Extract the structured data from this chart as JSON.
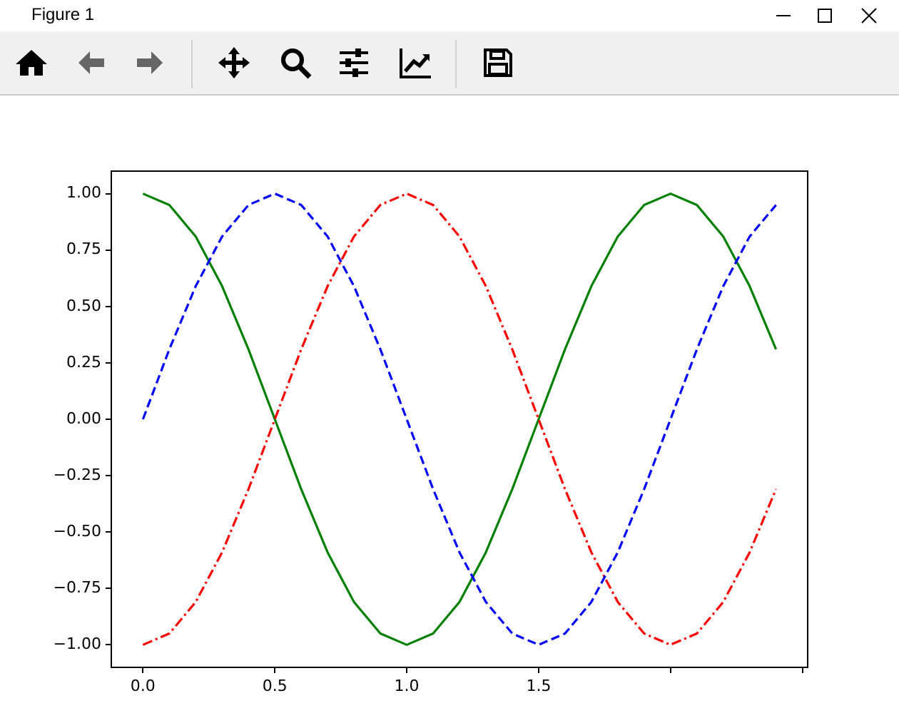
{
  "chart_data": {
    "type": "line",
    "annotations": [
      "Figure 1"
    ],
    "x": [
      0,
      0.1,
      0.2,
      0.3,
      0.4,
      0.5,
      0.6,
      0.7,
      0.8,
      0.9,
      1.0,
      1.1,
      1.2,
      1.3,
      1.4,
      1.5,
      1.6,
      1.7,
      1.8,
      1.9,
      2.0,
      2.1,
      2.2,
      2.3,
      2.4
    ],
    "series": [
      {
        "color": "#0000ff",
        "line_style": "dashed",
        "values": [
          0,
          0.31,
          0.59,
          0.81,
          0.95,
          1,
          0.95,
          0.81,
          0.59,
          0.31,
          0,
          -0.31,
          -0.59,
          -0.81,
          -0.95,
          -1,
          -0.95,
          -0.81,
          -0.59,
          -0.31,
          0,
          0.31,
          0.59,
          0.81,
          0.95
        ]
      },
      {
        "color": "#ff0000",
        "line_style": "dashdot",
        "values": [
          -1,
          -0.95,
          -0.81,
          -0.59,
          -0.31,
          0,
          0.31,
          0.59,
          0.81,
          0.95,
          1,
          0.95,
          0.81,
          0.59,
          0.31,
          0,
          -0.31,
          -0.59,
          -0.81,
          -0.95,
          -1,
          -0.95,
          -0.81,
          -0.59,
          -0.31
        ]
      },
      {
        "color": "#008000",
        "line_style": "solid",
        "values": [
          1,
          0.95,
          0.81,
          0.59,
          0.31,
          0,
          -0.31,
          -0.59,
          -0.81,
          -0.95,
          -1,
          -0.95,
          -0.81,
          -0.59,
          -0.31,
          0,
          0.31,
          0.59,
          0.81,
          0.95,
          1,
          0.95,
          0.81,
          0.59,
          0.31
        ]
      }
    ],
    "xlim": [
      -0.12,
      2.52
    ],
    "xticks": [
      {
        "value": 0,
        "label": "0.0"
      },
      0.5,
      {
        "value": 1,
        "label": "1.0"
      },
      1.5,
      {
        "value": 2,
        "label": null
      },
      {
        "value": 2.5,
        "label": null
      }
    ],
    "ylim": [
      -1.1,
      1.1
    ],
    "yticks": [
      {
        "value": -1,
        "label": "−1.00"
      },
      {
        "value": -0.75,
        "label": "−0.75"
      },
      {
        "value": -0.5,
        "label": "−0.50"
      },
      {
        "value": -0.25,
        "label": "−0.25"
      },
      {
        "value": 0,
        "label": "0.00"
      },
      {
        "value": 0.25,
        "label": "0.25"
      },
      {
        "value": 0.5,
        "label": "0.50"
      },
      {
        "value": 0.75,
        "label": "0.75"
      },
      {
        "value": 1,
        "label": "1.00"
      }
    ],
    "grid": false,
    "legend": false,
    "marker": "none"
  }
}
